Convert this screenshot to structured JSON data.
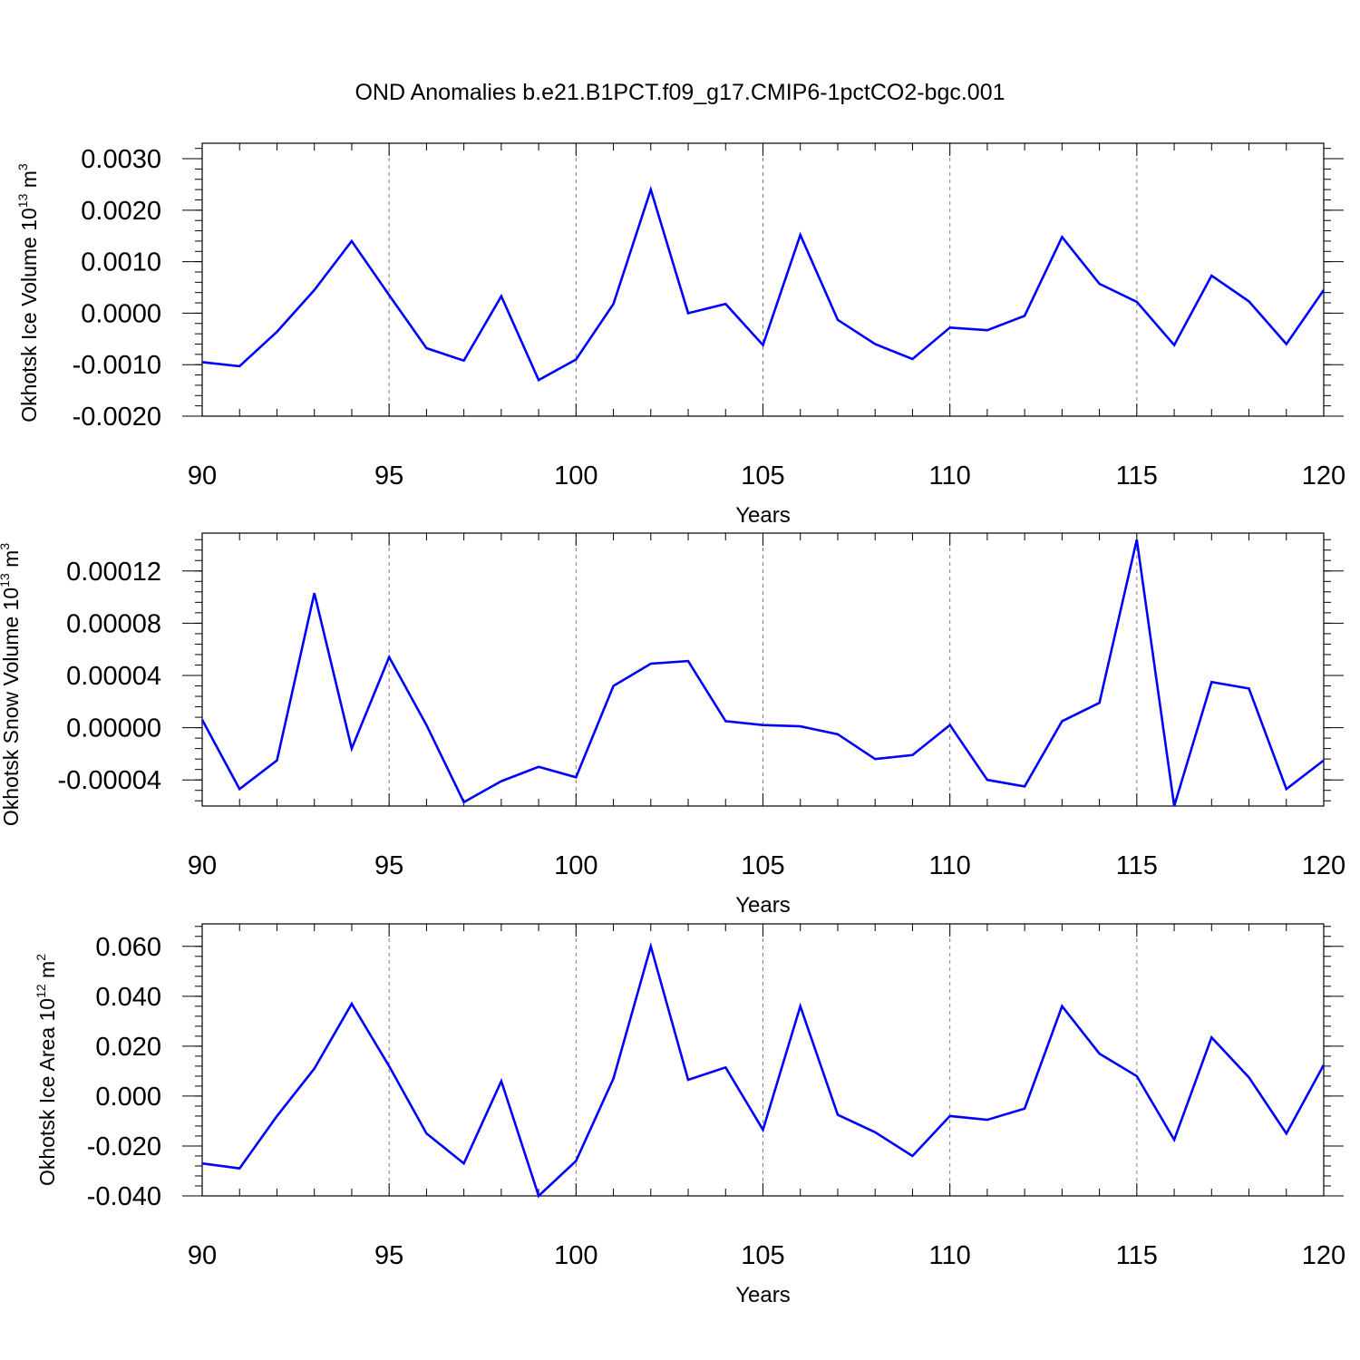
{
  "title": "OND Anomalies b.e21.B1PCT.f09_g17.CMIP6-1pctCO2-bgc.001",
  "colors": {
    "series": "#0000ff",
    "axis": "#000000",
    "grid": "#808080",
    "background": "#ffffff"
  },
  "chart_data": [
    {
      "type": "line",
      "title": "",
      "xlabel": "Years",
      "ylabel": {
        "text": "Okhotsk Ice Volume 10",
        "exp": "13",
        "unit": " m",
        "unit_exp": "3"
      },
      "xlim": [
        90,
        120
      ],
      "ylim": [
        -0.002,
        0.0033
      ],
      "x_ticks": [
        90,
        95,
        100,
        105,
        110,
        115,
        120
      ],
      "x_tick_labels": [
        "90",
        "95",
        "100",
        "105",
        "110",
        "115",
        "120"
      ],
      "y_ticks": [
        -0.002,
        -0.001,
        0.0,
        0.001,
        0.002,
        0.003
      ],
      "y_tick_labels": [
        "-0.0020",
        "-0.0010",
        "0.0000",
        "0.0010",
        "0.0020",
        "0.0030"
      ],
      "y_minor_step": 0.0002,
      "grid": "vertical dashed at major x ticks",
      "x": [
        90,
        91,
        92,
        93,
        94,
        95,
        96,
        97,
        98,
        99,
        100,
        101,
        102,
        103,
        104,
        105,
        106,
        107,
        108,
        109,
        110,
        111,
        112,
        113,
        114,
        115,
        116,
        117,
        118,
        119,
        120
      ],
      "series": [
        {
          "values": [
            -0.00095,
            -0.00103,
            -0.00036,
            0.00045,
            0.0014,
            0.00035,
            -0.00068,
            -0.00092,
            0.00033,
            -0.0013,
            -0.0009,
            0.00018,
            0.0024,
            0.0,
            0.00018,
            -0.00062,
            0.00152,
            -0.00013,
            -0.0006,
            -0.00089,
            -0.00028,
            -0.00033,
            -5e-05,
            0.00148,
            0.00057,
            0.00022,
            -0.00062,
            0.00073,
            0.00023,
            -0.0006,
            0.00045
          ]
        }
      ]
    },
    {
      "type": "line",
      "title": "",
      "xlabel": "Years",
      "ylabel": {
        "text": "Okhotsk Snow Volume 10",
        "exp": "13",
        "unit": " m",
        "unit_exp": "3"
      },
      "xlim": [
        90,
        120
      ],
      "ylim": [
        -6e-05,
        0.000149
      ],
      "x_ticks": [
        90,
        95,
        100,
        105,
        110,
        115,
        120
      ],
      "x_tick_labels": [
        "90",
        "95",
        "100",
        "105",
        "110",
        "115",
        "120"
      ],
      "y_ticks": [
        -4e-05,
        0.0,
        4e-05,
        8e-05,
        0.00012
      ],
      "y_tick_labels": [
        "-0.00004",
        "0.00000",
        "0.00004",
        "0.00008",
        "0.00012"
      ],
      "y_minor_step": 8e-06,
      "grid": "vertical dashed at major x ticks",
      "x": [
        90,
        91,
        92,
        93,
        94,
        95,
        96,
        97,
        98,
        99,
        100,
        101,
        102,
        103,
        104,
        105,
        106,
        107,
        108,
        109,
        110,
        111,
        112,
        113,
        114,
        115,
        116,
        117,
        118,
        119,
        120
      ],
      "series": [
        {
          "values": [
            6e-06,
            -4.7e-05,
            -2.5e-05,
            0.000103,
            -1.6e-05,
            5.4e-05,
            2e-06,
            -5.7e-05,
            -4.1e-05,
            -3e-05,
            -3.8e-05,
            3.2e-05,
            4.9e-05,
            5.1e-05,
            5e-06,
            2e-06,
            1e-06,
            -5e-06,
            -2.4e-05,
            -2.1e-05,
            2e-06,
            -4e-05,
            -4.5e-05,
            5e-06,
            1.9e-05,
            0.000144,
            -6e-05,
            3.5e-05,
            3e-05,
            -4.7e-05,
            -2.5e-05
          ]
        }
      ]
    },
    {
      "type": "line",
      "title": "",
      "xlabel": "Years",
      "ylabel": {
        "text": "Okhotsk Ice Area 10",
        "exp": "12",
        "unit": " m",
        "unit_exp": "2"
      },
      "xlim": [
        90,
        120
      ],
      "ylim": [
        -0.04,
        0.069
      ],
      "x_ticks": [
        90,
        95,
        100,
        105,
        110,
        115,
        120
      ],
      "x_tick_labels": [
        "90",
        "95",
        "100",
        "105",
        "110",
        "115",
        "120"
      ],
      "y_ticks": [
        -0.04,
        -0.02,
        0.0,
        0.02,
        0.04,
        0.06
      ],
      "y_tick_labels": [
        "-0.040",
        "-0.020",
        "0.000",
        "0.020",
        "0.040",
        "0.060"
      ],
      "y_minor_step": 0.004,
      "grid": "vertical dashed at major x ticks",
      "x": [
        90,
        91,
        92,
        93,
        94,
        95,
        96,
        97,
        98,
        99,
        100,
        101,
        102,
        103,
        104,
        105,
        106,
        107,
        108,
        109,
        110,
        111,
        112,
        113,
        114,
        115,
        116,
        117,
        118,
        119,
        120
      ],
      "series": [
        {
          "values": [
            -0.027,
            -0.029,
            -0.008,
            0.011,
            0.037,
            0.012,
            -0.015,
            -0.027,
            0.006,
            -0.04,
            -0.026,
            0.007,
            0.06,
            0.0065,
            0.0115,
            -0.0135,
            0.036,
            -0.0075,
            -0.0145,
            -0.024,
            -0.008,
            -0.0095,
            -0.005,
            0.036,
            0.017,
            0.008,
            -0.0175,
            0.0235,
            0.0075,
            -0.015,
            0.0125
          ]
        }
      ]
    }
  ]
}
